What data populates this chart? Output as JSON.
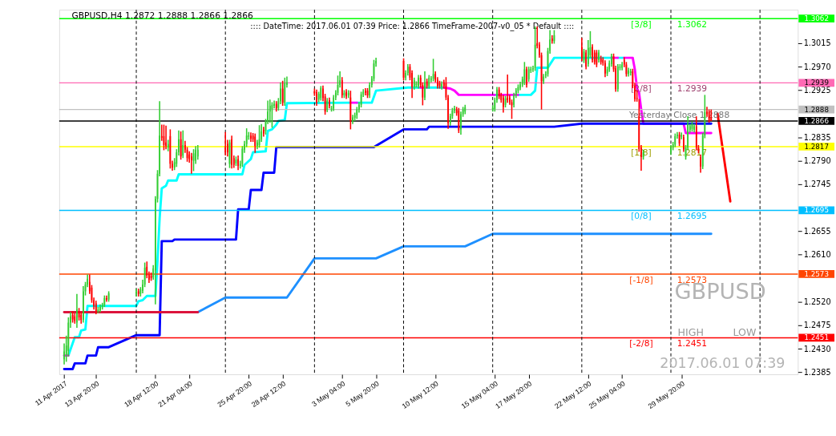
{
  "chart_data": {
    "type": "candlestick",
    "title": "GBPUSD,H4  1.2872 1.2888 1.2866 1.2866",
    "subtitle": ":::: DateTime: 2017.06.01 07:39    Price: 1.2866    TimeFrame-2007-v0_05    *  Default  ::::",
    "x": [
      "2017-04-11T08:00",
      "2017-04-11T12:00",
      "2017-04-11T16:00",
      "2017-04-11T20:00",
      "2017-04-12T00:00",
      "2017-04-12T04:00",
      "2017-04-12T08:00",
      "2017-04-12T12:00",
      "2017-04-12T16:00",
      "2017-04-12T20:00",
      "2017-04-13T00:00",
      "2017-04-13T04:00",
      "2017-04-13T08:00",
      "2017-04-13T12:00",
      "2017-04-13T16:00",
      "2017-04-13T20:00",
      "2017-04-14T00:00",
      "2017-04-14T04:00",
      "2017-04-14T08:00",
      "2017-04-14T12:00",
      "2017-04-14T16:00",
      "2017-04-14T20:00",
      "2017-04-17T00:00",
      "2017-04-17T04:00",
      "2017-04-17T08:00",
      "2017-04-17T12:00",
      "2017-04-17T16:00",
      "2017-04-17T20:00",
      "2017-04-18T00:00",
      "2017-04-18T04:00",
      "2017-04-18T08:00",
      "2017-04-18T12:00",
      "2017-04-18T16:00",
      "2017-04-18T20:00",
      "2017-04-19T00:00",
      "2017-04-19T04:00",
      "2017-04-19T08:00",
      "2017-04-19T12:00",
      "2017-04-19T16:00",
      "2017-04-19T20:00",
      "2017-04-20T00:00",
      "2017-04-20T04:00",
      "2017-04-20T08:00",
      "2017-04-20T12:00",
      "2017-04-20T16:00",
      "2017-04-20T20:00",
      "2017-04-21T00:00",
      "2017-04-21T04:00",
      "2017-04-21T08:00",
      "2017-04-21T12:00",
      "2017-04-21T16:00",
      "2017-04-21T20:00",
      "2017-04-24T00:00",
      "2017-04-24T04:00",
      "2017-04-24T08:00",
      "2017-04-24T12:00",
      "2017-04-24T16:00",
      "2017-04-24T20:00",
      "2017-04-25T00:00",
      "2017-04-25T04:00",
      "2017-04-25T08:00",
      "2017-04-25T12:00",
      "2017-04-25T16:00",
      "2017-04-25T20:00",
      "2017-04-26T00:00",
      "2017-04-26T04:00",
      "2017-04-26T08:00",
      "2017-04-26T12:00",
      "2017-04-26T16:00",
      "2017-04-26T20:00",
      "2017-04-27T00:00",
      "2017-04-27T04:00",
      "2017-04-27T08:00",
      "2017-04-27T12:00",
      "2017-04-27T16:00",
      "2017-04-27T20:00",
      "2017-04-28T00:00",
      "2017-04-28T04:00",
      "2017-04-28T08:00",
      "2017-04-28T12:00",
      "2017-04-28T16:00",
      "2017-04-28T20:00",
      "2017-05-01T00:00",
      "2017-05-01T04:00",
      "2017-05-01T08:00",
      "2017-05-01T12:00",
      "2017-05-01T16:00",
      "2017-05-01T20:00",
      "2017-05-02T00:00",
      "2017-05-02T04:00",
      "2017-05-02T08:00",
      "2017-05-02T12:00",
      "2017-05-02T16:00",
      "2017-05-02T20:00",
      "2017-05-03T00:00",
      "2017-05-03T04:00",
      "2017-05-03T08:00",
      "2017-05-03T12:00",
      "2017-05-03T16:00",
      "2017-05-03T20:00",
      "2017-05-04T00:00",
      "2017-05-04T04:00",
      "2017-05-04T08:00",
      "2017-05-04T12:00",
      "2017-05-04T16:00",
      "2017-05-04T20:00",
      "2017-05-05T00:00",
      "2017-05-05T04:00",
      "2017-05-05T08:00",
      "2017-05-05T12:00",
      "2017-05-05T16:00",
      "2017-05-05T20:00",
      "2017-05-08T00:00",
      "2017-05-08T04:00",
      "2017-05-08T08:00",
      "2017-05-08T12:00",
      "2017-05-08T16:00",
      "2017-05-08T20:00",
      "2017-05-09T00:00",
      "2017-05-09T04:00",
      "2017-05-09T08:00",
      "2017-05-09T12:00",
      "2017-05-09T16:00",
      "2017-05-09T20:00",
      "2017-05-10T00:00",
      "2017-05-10T04:00",
      "2017-05-10T08:00",
      "2017-05-10T12:00",
      "2017-05-10T16:00",
      "2017-05-10T20:00",
      "2017-05-11T00:00",
      "2017-05-11T04:00",
      "2017-05-11T08:00",
      "2017-05-11T12:00",
      "2017-05-11T16:00",
      "2017-05-11T20:00",
      "2017-05-12T00:00",
      "2017-05-12T04:00",
      "2017-05-12T08:00",
      "2017-05-12T12:00",
      "2017-05-12T16:00",
      "2017-05-12T20:00",
      "2017-05-15T00:00",
      "2017-05-15T04:00",
      "2017-05-15T08:00",
      "2017-05-15T12:00",
      "2017-05-15T16:00",
      "2017-05-15T20:00",
      "2017-05-16T00:00",
      "2017-05-16T04:00",
      "2017-05-16T08:00",
      "2017-05-16T12:00",
      "2017-05-16T16:00",
      "2017-05-16T20:00",
      "2017-05-17T00:00",
      "2017-05-17T04:00",
      "2017-05-17T08:00",
      "2017-05-17T12:00",
      "2017-05-17T16:00",
      "2017-05-17T20:00",
      "2017-05-18T00:00",
      "2017-05-18T04:00",
      "2017-05-18T08:00",
      "2017-05-18T12:00",
      "2017-05-18T16:00",
      "2017-05-18T20:00",
      "2017-05-19T00:00",
      "2017-05-19T04:00",
      "2017-05-19T08:00",
      "2017-05-19T12:00",
      "2017-05-19T16:00",
      "2017-05-19T20:00",
      "2017-05-22T00:00",
      "2017-05-22T04:00",
      "2017-05-22T08:00",
      "2017-05-22T12:00",
      "2017-05-22T16:00",
      "2017-05-22T20:00",
      "2017-05-23T00:00",
      "2017-05-23T04:00",
      "2017-05-23T08:00",
      "2017-05-23T12:00",
      "2017-05-23T16:00",
      "2017-05-23T20:00",
      "2017-05-24T00:00",
      "2017-05-24T04:00",
      "2017-05-24T08:00",
      "2017-05-24T12:00",
      "2017-05-24T16:00",
      "2017-05-24T20:00",
      "2017-05-25T00:00",
      "2017-05-25T04:00",
      "2017-05-25T08:00",
      "2017-05-25T12:00",
      "2017-05-25T16:00",
      "2017-05-25T20:00",
      "2017-05-26T00:00",
      "2017-05-26T04:00",
      "2017-05-26T08:00",
      "2017-05-26T12:00",
      "2017-05-26T16:00",
      "2017-05-26T20:00",
      "2017-05-29T00:00",
      "2017-05-29T04:00",
      "2017-05-29T08:00",
      "2017-05-29T12:00",
      "2017-05-29T16:00",
      "2017-05-29T20:00",
      "2017-05-30T00:00",
      "2017-05-30T04:00",
      "2017-05-30T08:00",
      "2017-05-30T12:00",
      "2017-05-30T16:00",
      "2017-05-30T20:00",
      "2017-05-31T00:00",
      "2017-05-31T04:00",
      "2017-05-31T08:00",
      "2017-05-31T12:00",
      "2017-05-31T16:00",
      "2017-05-31T20:00",
      "2017-06-01T00:00",
      "2017-06-01T04:00"
    ],
    "ohlc": [
      [
        1.241,
        1.244,
        1.24,
        1.2425
      ],
      [
        1.2418,
        1.2455,
        1.2405,
        1.2436
      ],
      [
        1.2426,
        1.249,
        1.2415,
        1.248
      ],
      [
        1.248,
        1.25,
        1.247,
        1.2492
      ],
      [
        1.2495,
        1.2502,
        1.248,
        1.2486
      ],
      [
        1.2492,
        1.2498,
        1.2478,
        1.2483
      ],
      [
        1.248,
        1.2535,
        1.247,
        1.2505
      ],
      [
        1.25,
        1.2508,
        1.2484,
        1.249
      ],
      [
        1.2495,
        1.25,
        1.2478,
        1.2485
      ],
      [
        1.2485,
        1.255,
        1.248,
        1.254
      ],
      [
        1.254,
        1.2558,
        1.2532,
        1.2553
      ],
      [
        1.2553,
        1.2572,
        1.2548,
        1.2564
      ],
      [
        1.2558,
        1.2572,
        1.2535,
        1.254
      ],
      [
        1.2547,
        1.2552,
        1.2518,
        1.2523
      ],
      [
        1.2523,
        1.2528,
        1.2505,
        1.2512
      ],
      [
        1.2517,
        1.2522,
        1.2496,
        1.2502
      ],
      [
        1.2502,
        1.251,
        1.2498,
        1.2505
      ],
      [
        1.2504,
        1.2515,
        1.25,
        1.251
      ],
      [
        1.251,
        1.2518,
        1.2505,
        1.2514
      ],
      [
        1.2514,
        1.2532,
        1.251,
        1.2527
      ],
      [
        1.2527,
        1.2532,
        1.252,
        1.2524
      ],
      [
        1.2524,
        1.254,
        1.252,
        1.2536
      ],
      [
        1.2536,
        1.2545,
        1.253,
        1.254
      ],
      [
        1.254,
        1.2545,
        1.253,
        1.2535
      ],
      [
        1.2535,
        1.2548,
        1.253,
        1.2544
      ],
      [
        1.2541,
        1.2562,
        1.2536,
        1.2553
      ],
      [
        1.2553,
        1.2595,
        1.2548,
        1.2585
      ],
      [
        1.2587,
        1.2597,
        1.2565,
        1.257
      ],
      [
        1.2572,
        1.2578,
        1.2556,
        1.2562
      ],
      [
        1.257,
        1.2576,
        1.256,
        1.2565
      ],
      [
        1.2567,
        1.259,
        1.2562,
        1.2584
      ],
      [
        1.258,
        1.2722,
        1.2515,
        1.2717
      ],
      [
        1.2717,
        1.2772,
        1.271,
        1.2765
      ],
      [
        1.2765,
        1.2904,
        1.276,
        1.2838
      ],
      [
        1.2837,
        1.2859,
        1.2828,
        1.2834
      ],
      [
        1.2837,
        1.2859,
        1.281,
        1.282
      ],
      [
        1.2825,
        1.2857,
        1.2812,
        1.2818
      ],
      [
        1.2815,
        1.283,
        1.2808,
        1.2822
      ],
      [
        1.2837,
        1.285,
        1.2775,
        1.2784
      ],
      [
        1.2784,
        1.279,
        1.2771,
        1.2777
      ],
      [
        1.2777,
        1.2795,
        1.2772,
        1.2787
      ],
      [
        1.2784,
        1.2812,
        1.2778,
        1.2806
      ],
      [
        1.2806,
        1.2848,
        1.28,
        1.2831
      ],
      [
        1.2831,
        1.2846,
        1.2792,
        1.2798
      ],
      [
        1.28,
        1.2848,
        1.2795,
        1.282
      ],
      [
        1.282,
        1.2828,
        1.2805,
        1.2811
      ],
      [
        1.2811,
        1.2816,
        1.2788,
        1.2795
      ],
      [
        1.2802,
        1.2808,
        1.2786,
        1.2793
      ],
      [
        1.2798,
        1.2805,
        1.2765,
        1.2791
      ],
      [
        1.279,
        1.2812,
        1.277,
        1.2804
      ],
      [
        1.279,
        1.2818,
        1.2784,
        1.2811
      ],
      [
        1.2798,
        1.282,
        1.2792,
        1.2811
      ],
      [
        1.2815,
        1.2845,
        1.28,
        1.2806
      ],
      [
        1.2822,
        1.283,
        1.2798,
        1.2806
      ],
      [
        1.2784,
        1.283,
        1.2776,
        1.2825
      ],
      [
        1.2831,
        1.2838,
        1.2775,
        1.2782
      ],
      [
        1.2795,
        1.28,
        1.2776,
        1.2782
      ],
      [
        1.2785,
        1.2798,
        1.278,
        1.2792
      ],
      [
        1.2793,
        1.28,
        1.2772,
        1.278
      ],
      [
        1.278,
        1.279,
        1.2775,
        1.2784
      ],
      [
        1.2784,
        1.2818,
        1.2778,
        1.2813
      ],
      [
        1.2811,
        1.2828,
        1.2805,
        1.2822
      ],
      [
        1.2822,
        1.2852,
        1.2816,
        1.2838
      ],
      [
        1.2836,
        1.2845,
        1.283,
        1.2838
      ],
      [
        1.2838,
        1.2844,
        1.2826,
        1.2832
      ],
      [
        1.2838,
        1.2843,
        1.2826,
        1.2831
      ],
      [
        1.2836,
        1.2842,
        1.2805,
        1.2818
      ],
      [
        1.2818,
        1.283,
        1.2812,
        1.2825
      ],
      [
        1.282,
        1.2858,
        1.2815,
        1.2831
      ],
      [
        1.2831,
        1.286,
        1.2826,
        1.2846
      ],
      [
        1.2849,
        1.2855,
        1.2836,
        1.2842
      ],
      [
        1.2847,
        1.287,
        1.284,
        1.2865
      ],
      [
        1.2865,
        1.2905,
        1.286,
        1.2884
      ],
      [
        1.2884,
        1.2907,
        1.2863,
        1.2895
      ],
      [
        1.2889,
        1.2902,
        1.2853,
        1.2897
      ],
      [
        1.2895,
        1.2905,
        1.289,
        1.2899
      ],
      [
        1.2899,
        1.2904,
        1.2884,
        1.289
      ],
      [
        1.2891,
        1.291,
        1.2886,
        1.2904
      ],
      [
        1.2904,
        1.294,
        1.2898,
        1.2928
      ],
      [
        1.2928,
        1.2943,
        1.2895,
        1.2901
      ],
      [
        1.2901,
        1.2949,
        1.2895,
        1.2938
      ],
      [
        1.2935,
        1.2951,
        1.293,
        1.294
      ],
      [
        1.2923,
        1.2928,
        1.2914,
        1.2919
      ],
      [
        1.2921,
        1.2926,
        1.2895,
        1.2901
      ],
      [
        1.2907,
        1.2922,
        1.2902,
        1.2918
      ],
      [
        1.291,
        1.2933,
        1.2905,
        1.2929
      ],
      [
        1.2928,
        1.2934,
        1.2904,
        1.291
      ],
      [
        1.2913,
        1.2918,
        1.2878,
        1.2884
      ],
      [
        1.2888,
        1.291,
        1.2883,
        1.2905
      ],
      [
        1.2906,
        1.2911,
        1.289,
        1.2895
      ],
      [
        1.2889,
        1.2895,
        1.2884,
        1.289
      ],
      [
        1.289,
        1.2916,
        1.2885,
        1.2911
      ],
      [
        1.2911,
        1.2925,
        1.2906,
        1.292
      ],
      [
        1.292,
        1.2953,
        1.2915,
        1.2935
      ],
      [
        1.2935,
        1.2961,
        1.293,
        1.2944
      ],
      [
        1.2944,
        1.295,
        1.291,
        1.2915
      ],
      [
        1.2915,
        1.2925,
        1.291,
        1.292
      ],
      [
        1.2922,
        1.2927,
        1.2908,
        1.2913
      ],
      [
        1.2915,
        1.2925,
        1.291,
        1.292
      ],
      [
        1.2911,
        1.2924,
        1.285,
        1.2866
      ],
      [
        1.2866,
        1.2878,
        1.286,
        1.2873
      ],
      [
        1.2872,
        1.2882,
        1.2866,
        1.2877
      ],
      [
        1.2877,
        1.2893,
        1.287,
        1.2888
      ],
      [
        1.2888,
        1.2902,
        1.2882,
        1.2897
      ],
      [
        1.2897,
        1.2922,
        1.2892,
        1.2917
      ],
      [
        1.2917,
        1.2927,
        1.2912,
        1.2922
      ],
      [
        1.2924,
        1.2929,
        1.2915,
        1.292
      ],
      [
        1.2924,
        1.2929,
        1.291,
        1.2915
      ],
      [
        1.2915,
        1.294,
        1.291,
        1.2935
      ],
      [
        1.2935,
        1.2952,
        1.293,
        1.2947
      ],
      [
        1.2947,
        1.2983,
        1.2942,
        1.2976
      ],
      [
        1.2976,
        1.2987,
        1.297,
        1.2981
      ],
      [
        1.2981,
        1.2986,
        1.2944,
        1.2949
      ],
      [
        1.2949,
        1.2963,
        1.2944,
        1.2958
      ],
      [
        1.2958,
        1.2975,
        1.2953,
        1.297
      ],
      [
        1.297,
        1.2975,
        1.2944,
        1.2949
      ],
      [
        1.2958,
        1.2963,
        1.291,
        1.2931
      ],
      [
        1.2931,
        1.2949,
        1.2926,
        1.2944
      ],
      [
        1.2935,
        1.2942,
        1.293,
        1.2937
      ],
      [
        1.2933,
        1.2954,
        1.2928,
        1.2949
      ],
      [
        1.2949,
        1.2954,
        1.293,
        1.2935
      ],
      [
        1.2935,
        1.294,
        1.2896,
        1.2911
      ],
      [
        1.2911,
        1.2961,
        1.2906,
        1.294
      ],
      [
        1.2942,
        1.2947,
        1.2928,
        1.2933
      ],
      [
        1.2933,
        1.2954,
        1.2928,
        1.2949
      ],
      [
        1.2945,
        1.2952,
        1.294,
        1.2947
      ],
      [
        1.2947,
        1.2985,
        1.2942,
        1.2956
      ],
      [
        1.2956,
        1.2961,
        1.294,
        1.2945
      ],
      [
        1.2945,
        1.295,
        1.2928,
        1.2933
      ],
      [
        1.2938,
        1.2943,
        1.2928,
        1.2933
      ],
      [
        1.2931,
        1.2942,
        1.2926,
        1.2937
      ],
      [
        1.294,
        1.2945,
        1.2928,
        1.2933
      ],
      [
        1.2938,
        1.295,
        1.2906,
        1.2911
      ],
      [
        1.2911,
        1.2916,
        1.2851,
        1.2862
      ],
      [
        1.2862,
        1.288,
        1.2857,
        1.2875
      ],
      [
        1.2875,
        1.2891,
        1.287,
        1.2886
      ],
      [
        1.2886,
        1.2895,
        1.2881,
        1.289
      ],
      [
        1.2888,
        1.2893,
        1.2876,
        1.2881
      ],
      [
        1.2886,
        1.2891,
        1.2843,
        1.2848
      ],
      [
        1.285,
        1.2884,
        1.284,
        1.2879
      ],
      [
        1.2879,
        1.2893,
        1.2874,
        1.2888
      ],
      [
        1.2884,
        1.2897,
        1.2879,
        1.2892
      ],
      [
        1.2889,
        1.2896,
        1.2884,
        1.2891
      ],
      [
        1.2889,
        1.2911,
        1.2884,
        1.2906
      ],
      [
        1.2906,
        1.2931,
        1.2901,
        1.2926
      ],
      [
        1.2926,
        1.2931,
        1.2908,
        1.2913
      ],
      [
        1.2915,
        1.292,
        1.2901,
        1.2906
      ],
      [
        1.2911,
        1.2916,
        1.2882,
        1.2893
      ],
      [
        1.2897,
        1.2914,
        1.2892,
        1.2909
      ],
      [
        1.2911,
        1.2955,
        1.2901,
        1.2906
      ],
      [
        1.2911,
        1.2916,
        1.2897,
        1.2902
      ],
      [
        1.2902,
        1.2907,
        1.287,
        1.2896
      ],
      [
        1.2897,
        1.292,
        1.2892,
        1.2915
      ],
      [
        1.2915,
        1.2929,
        1.291,
        1.2924
      ],
      [
        1.2924,
        1.2936,
        1.2919,
        1.2931
      ],
      [
        1.293,
        1.2941,
        1.2925,
        1.2936
      ],
      [
        1.2936,
        1.2951,
        1.2931,
        1.2946
      ],
      [
        1.294,
        1.2979,
        1.2935,
        1.2965
      ],
      [
        1.2965,
        1.297,
        1.293,
        1.2935
      ],
      [
        1.2946,
        1.297,
        1.2941,
        1.2965
      ],
      [
        1.2963,
        1.297,
        1.2958,
        1.2965
      ],
      [
        1.2965,
        1.2972,
        1.296,
        1.2967
      ],
      [
        1.2967,
        1.3047,
        1.2962,
        1.3012
      ],
      [
        1.3015,
        1.3047,
        1.3005,
        1.301
      ],
      [
        1.3012,
        1.3017,
        1.2987,
        1.2992
      ],
      [
        1.2992,
        1.2997,
        1.2888,
        1.2942
      ],
      [
        1.2942,
        1.2956,
        1.2937,
        1.2951
      ],
      [
        1.2953,
        1.2961,
        1.2948,
        1.2956
      ],
      [
        1.2956,
        1.3006,
        1.2951,
        1.3
      ],
      [
        1.3,
        1.304,
        1.2995,
        1.3022
      ],
      [
        1.3024,
        1.303,
        1.3014,
        1.3019
      ],
      [
        1.3019,
        1.304,
        1.3014,
        1.303
      ],
      [
        1.3008,
        1.3025,
        1.2981,
        1.2986
      ],
      [
        1.2982,
        1.3004,
        1.2977,
        1.2999
      ],
      [
        1.2997,
        1.3002,
        1.2965,
        1.297
      ],
      [
        1.2975,
        1.3021,
        1.297,
        1.3006
      ],
      [
        1.2992,
        1.3038,
        1.2987,
        1.3007
      ],
      [
        1.3008,
        1.3013,
        1.2978,
        1.2983
      ],
      [
        1.2997,
        1.3002,
        1.2974,
        1.2979
      ],
      [
        1.2997,
        1.3002,
        1.2969,
        1.2974
      ],
      [
        1.2983,
        1.3002,
        1.2978,
        1.2997
      ],
      [
        1.2986,
        1.2991,
        1.2974,
        1.2979
      ],
      [
        1.2983,
        1.2988,
        1.2972,
        1.2977
      ],
      [
        1.2977,
        1.2982,
        1.295,
        1.2957
      ],
      [
        1.2957,
        1.297,
        1.2952,
        1.2965
      ],
      [
        1.2965,
        1.2982,
        1.296,
        1.2977
      ],
      [
        1.2975,
        1.2995,
        1.297,
        1.299
      ],
      [
        1.299,
        1.2995,
        1.296,
        1.2965
      ],
      [
        1.2967,
        1.2972,
        1.2922,
        1.2927
      ],
      [
        1.2927,
        1.2975,
        1.2922,
        1.297
      ],
      [
        1.2968,
        1.2975,
        1.2963,
        1.297
      ],
      [
        1.2968,
        1.2979,
        1.2963,
        1.2974
      ],
      [
        1.2983,
        1.2988,
        1.2969,
        1.2974
      ],
      [
        1.2974,
        1.2979,
        1.2951,
        1.2956
      ],
      [
        1.2956,
        1.2968,
        1.2951,
        1.2963
      ],
      [
        1.2958,
        1.2966,
        1.2953,
        1.2961
      ],
      [
        1.2961,
        1.2966,
        1.2929,
        1.2934
      ],
      [
        1.2934,
        1.2939,
        1.2903,
        1.2908
      ],
      [
        1.291,
        1.2925,
        1.2903,
        1.2908
      ],
      [
        1.2875,
        1.2908,
        1.2807,
        1.2812
      ],
      [
        1.2815,
        1.282,
        1.2771,
        1.2797
      ],
      [
        1.2797,
        1.2811,
        1.2792,
        1.2806
      ],
      [
        1.2806,
        1.282,
        1.2801,
        1.2815
      ],
      [
        1.2815,
        1.2826,
        1.281,
        1.2821
      ],
      [
        1.2821,
        1.2842,
        1.2816,
        1.2837
      ],
      [
        1.2837,
        1.2845,
        1.2832,
        1.284
      ],
      [
        1.284,
        1.2845,
        1.2818,
        1.2823
      ],
      [
        1.2836,
        1.2844,
        1.2831,
        1.2839
      ],
      [
        1.2835,
        1.284,
        1.2807,
        1.2812
      ],
      [
        1.2797,
        1.282,
        1.2792,
        1.2815
      ],
      [
        1.2815,
        1.2875,
        1.281,
        1.286
      ],
      [
        1.2849,
        1.2861,
        1.2844,
        1.2856
      ],
      [
        1.2851,
        1.2865,
        1.2846,
        1.286
      ],
      [
        1.2849,
        1.2861,
        1.2844,
        1.2856
      ],
      [
        1.2856,
        1.2875,
        1.281,
        1.2815
      ],
      [
        1.2815,
        1.282,
        1.2804,
        1.2809
      ],
      [
        1.2797,
        1.2802,
        1.2767,
        1.2779
      ],
      [
        1.2779,
        1.2843,
        1.2774,
        1.2838
      ],
      [
        1.2838,
        1.2916,
        1.2833,
        1.2883
      ],
      [
        1.2884,
        1.2893,
        1.2874,
        1.2879
      ],
      [
        1.2883,
        1.2888,
        1.2863,
        1.2868
      ],
      [
        1.2872,
        1.2888,
        1.2866,
        1.2866
      ]
    ],
    "colors": [
      "#32cd32",
      "#32cd32",
      "#32cd32",
      "#32cd32",
      "#ff0000",
      "#ff0000",
      "#32cd32",
      "#ff0000",
      "#ff0000",
      "#32cd32",
      "#32cd32",
      "#32cd32",
      "#ff0000",
      "#ff0000",
      "#ff0000",
      "#ff0000",
      "#32cd32",
      "#32cd32",
      "#32cd32",
      "#32cd32",
      "#ff0000",
      "#32cd32",
      "#32cd32",
      "#ff0000",
      "#32cd32",
      "#32cd32",
      "#32cd32",
      "#ff0000",
      "#ff0000",
      "#ff0000",
      "#32cd32",
      "#32cd32",
      "#32cd32",
      "#32cd32",
      "#ff0000",
      "#ff0000",
      "#ff0000",
      "#32cd32",
      "#ff0000",
      "#ff0000",
      "#32cd32",
      "#32cd32",
      "#32cd32",
      "#ff0000",
      "#32cd32",
      "#ff0000",
      "#ff0000",
      "#ff0000",
      "#ff0000",
      "#32cd32",
      "#32cd32",
      "#32cd32",
      "#ff0000",
      "#ff0000",
      "#32cd32",
      "#ff0000",
      "#ff0000",
      "#32cd32",
      "#ff0000",
      "#32cd32",
      "#32cd32",
      "#32cd32",
      "#32cd32",
      "#32cd32",
      "#ff0000",
      "#ff0000",
      "#ff0000",
      "#32cd32",
      "#32cd32",
      "#32cd32",
      "#ff0000",
      "#32cd32",
      "#32cd32",
      "#32cd32",
      "#32cd32",
      "#32cd32",
      "#ff0000",
      "#32cd32",
      "#32cd32",
      "#ff0000",
      "#32cd32",
      "#32cd32",
      "#ff0000",
      "#ff0000",
      "#32cd32",
      "#32cd32",
      "#ff0000",
      "#ff0000",
      "#32cd32",
      "#ff0000",
      "#32cd32",
      "#32cd32",
      "#32cd32",
      "#32cd32",
      "#32cd32",
      "#ff0000",
      "#32cd32",
      "#ff0000",
      "#32cd32",
      "#ff0000",
      "#32cd32",
      "#32cd32",
      "#32cd32",
      "#32cd32",
      "#32cd32",
      "#32cd32",
      "#ff0000",
      "#ff0000",
      "#32cd32",
      "#32cd32",
      "#32cd32",
      "#32cd32",
      "#ff0000",
      "#32cd32",
      "#32cd32",
      "#ff0000",
      "#ff0000",
      "#32cd32",
      "#32cd32",
      "#32cd32",
      "#ff0000",
      "#ff0000",
      "#32cd32",
      "#ff0000",
      "#32cd32",
      "#32cd32",
      "#32cd32",
      "#ff0000",
      "#ff0000",
      "#ff0000",
      "#32cd32",
      "#ff0000",
      "#ff0000",
      "#ff0000",
      "#32cd32",
      "#32cd32",
      "#32cd32",
      "#ff0000",
      "#ff0000",
      "#32cd32",
      "#32cd32",
      "#32cd32",
      "#32cd32",
      "#32cd32",
      "#32cd32",
      "#ff0000",
      "#ff0000",
      "#ff0000",
      "#32cd32",
      "#ff0000",
      "#ff0000",
      "#ff0000",
      "#32cd32",
      "#32cd32",
      "#32cd32",
      "#32cd32",
      "#32cd32",
      "#32cd32",
      "#ff0000",
      "#32cd32",
      "#32cd32",
      "#32cd32",
      "#32cd32",
      "#ff0000",
      "#ff0000",
      "#ff0000",
      "#32cd32",
      "#32cd32",
      "#32cd32",
      "#32cd32",
      "#ff0000",
      "#32cd32",
      "#ff0000",
      "#32cd32",
      "#ff0000",
      "#32cd32",
      "#32cd32",
      "#ff0000",
      "#ff0000",
      "#ff0000",
      "#32cd32",
      "#ff0000",
      "#ff0000",
      "#ff0000",
      "#32cd32",
      "#32cd32",
      "#32cd32",
      "#ff0000",
      "#ff0000",
      "#32cd32",
      "#32cd32",
      "#32cd32",
      "#ff0000",
      "#ff0000",
      "#32cd32",
      "#32cd32",
      "#ff0000",
      "#ff0000",
      "#ff0000",
      "#ff0000",
      "#ff0000",
      "#32cd32",
      "#32cd32",
      "#32cd32",
      "#32cd32",
      "#32cd32",
      "#ff0000",
      "#32cd32",
      "#ff0000",
      "#32cd32",
      "#32cd32",
      "#32cd32",
      "#32cd32",
      "#32cd32",
      "#ff0000",
      "#ff0000",
      "#ff0000",
      "#32cd32",
      "#32cd32",
      "#ff0000",
      "#ff0000",
      "#ff0000"
    ],
    "series": [
      {
        "type": "line",
        "color": "#00ffff",
        "x": [
          "2017-04-11T16:00",
          "2017-04-12T04:00",
          "2017-04-12T12:00",
          "2017-04-12T16:00",
          "2017-04-13T00:00",
          "2017-04-13T04:00",
          "2017-04-17T00:00",
          "2017-04-17T04:00",
          "2017-04-17T12:00",
          "2017-04-17T20:00",
          "2017-04-18T12:00",
          "2017-04-18T16:00",
          "2017-04-18T20:00",
          "2017-04-19T00:00",
          "2017-04-19T08:00",
          "2017-04-19T12:00",
          "2017-04-20T04:00",
          "2017-04-20T08:00",
          "2017-04-25T08:00",
          "2017-04-25T12:00",
          "2017-04-26T00:00",
          "2017-04-26T04:00",
          "2017-04-27T04:00",
          "2017-04-27T08:00",
          "2017-04-27T16:00",
          "2017-04-28T00:00",
          "2017-04-28T04:00",
          "2017-04-28T16:00",
          "2017-04-28T20:00",
          "2017-05-03T20:00",
          "2017-05-04T00:00",
          "2017-05-04T08:00",
          "2017-05-05T12:00",
          "2017-05-05T20:00",
          "2017-05-08T08:00",
          "2017-05-09T08:00",
          "2017-05-09T12:00",
          "2017-05-09T16:00",
          "2017-05-11T04:00",
          "2017-05-12T04:00",
          "2017-05-15T04:00",
          "2017-05-15T12:00",
          "2017-05-16T08:00",
          "2017-05-17T00:00",
          "2017-05-18T00:00",
          "2017-05-18T08:00",
          "2017-05-18T12:00",
          "2017-05-19T08:00",
          "2017-05-19T20:00",
          "2017-05-24T08:00",
          "2017-05-24T12:00",
          "2017-05-24T20:00",
          "2017-05-25T08:00"
        ],
        "values": [
          1.2417,
          1.2452,
          1.2452,
          1.2465,
          1.2467,
          1.2512,
          1.2512,
          1.2521,
          1.2523,
          1.2531,
          1.2531,
          1.2598,
          1.268,
          1.2737,
          1.2742,
          1.2752,
          1.2752,
          1.2764,
          1.2764,
          1.2782,
          1.2793,
          1.2806,
          1.2808,
          1.2847,
          1.285,
          1.2859,
          1.2866,
          1.2868,
          1.29,
          1.2901,
          null,
          1.2901,
          1.2901,
          1.2924,
          1.293,
          1.293,
          null,
          1.293,
          1.293,
          null,
          1.2916,
          1.2916,
          null,
          1.2916,
          1.2916,
          1.2924,
          1.2968,
          1.2968,
          1.2987,
          1.2987,
          null,
          1.2987,
          1.2987
        ]
      },
      {
        "type": "line",
        "color": "#ff00ff",
        "x": [
          "2017-04-11T08:00",
          "2017-04-11T16:00",
          "2017-04-11T20:00",
          "2017-05-03T20:00",
          "2017-05-04T08:00",
          "2017-05-04T12:00",
          "2017-05-09T08:00",
          "2017-05-09T16:00",
          "2017-05-10T04:00",
          "2017-05-11T04:00",
          "2017-05-11T16:00",
          "2017-05-12T00:00",
          "2017-05-12T08:00",
          "2017-05-15T04:00",
          "2017-05-15T08:00",
          "2017-05-15T12:00",
          "2017-05-17T00:00",
          "2017-05-17T12:00",
          "2017-05-24T08:00",
          "2017-05-24T20:00",
          "2017-05-25T00:00",
          "2017-05-25T08:00",
          "2017-05-26T00:00",
          "2017-05-26T04:00",
          "2017-05-26T08:00",
          "2017-05-26T12:00",
          "2017-05-26T16:00",
          "2017-05-26T20:00",
          "2017-05-30T00:00",
          "2017-05-30T04:00",
          "2017-06-01T04:00"
        ],
        "values": [
          1.2417,
          1.2417,
          null,
          1.2901,
          1.2901,
          null,
          1.293,
          1.293,
          null,
          1.293,
          1.2928,
          1.2924,
          1.2916,
          1.2916,
          null,
          1.2916,
          1.2916,
          null,
          1.2987,
          1.2987,
          null,
          1.2987,
          1.2987,
          1.2965,
          1.2929,
          1.292,
          1.2888,
          1.2861,
          1.2861,
          1.2843,
          1.2843
        ]
      },
      {
        "type": "line",
        "color": "#0000ff",
        "x": [
          "2017-04-11T08:00",
          "2017-04-12T00:00",
          "2017-04-12T04:00",
          "2017-04-13T00:00",
          "2017-04-13T04:00",
          "2017-04-13T20:00",
          "2017-04-14T00:00",
          "2017-04-14T20:00",
          "2017-04-17T00:00",
          "2017-04-18T20:00",
          "2017-04-19T00:00",
          "2017-04-19T20:00",
          "2017-04-20T00:00",
          "2017-04-24T20:00",
          "2017-04-25T00:00",
          "2017-04-25T20:00",
          "2017-04-26T00:00",
          "2017-04-26T20:00",
          "2017-04-27T00:00",
          "2017-04-27T20:00",
          "2017-04-28T00:00",
          "2017-05-05T16:00",
          "2017-05-08T00:00",
          "2017-05-09T20:00",
          "2017-05-10T00:00",
          "2017-05-19T20:00",
          "2017-05-22T00:00",
          "2017-06-01T04:00"
        ],
        "values": [
          1.2391,
          1.2391,
          1.2402,
          1.2402,
          1.2417,
          1.2417,
          1.2433,
          1.2433,
          1.2456,
          1.2456,
          1.2636,
          1.2636,
          1.2639,
          1.2639,
          1.2697,
          1.2697,
          1.2734,
          1.2734,
          1.2767,
          1.2767,
          1.2816,
          1.2816,
          1.285,
          1.285,
          1.2855,
          1.2855,
          1.2861,
          1.2861
        ]
      },
      {
        "type": "line",
        "color": "#1e90ff",
        "x": [
          "2017-04-21T20:00",
          "2017-04-24T00:00",
          "2017-04-28T20:00",
          "2017-05-01T00:00",
          "2017-05-05T20:00",
          "2017-05-08T00:00",
          "2017-05-12T20:00",
          "2017-05-15T00:00",
          "2017-06-01T04:00"
        ],
        "values": [
          1.25,
          1.2528,
          1.2528,
          1.2603,
          1.2603,
          1.2626,
          1.2626,
          1.265,
          1.265
        ]
      },
      {
        "type": "line",
        "color": "#dc143c",
        "x": [
          "2017-04-11T08:00",
          "2017-04-21T20:00"
        ],
        "values": [
          1.25,
          1.25
        ]
      },
      {
        "type": "line",
        "color": "#ff0000",
        "x": [
          "2017-06-01T16:00",
          "2017-06-02T16:00"
        ],
        "values": [
          1.288,
          1.2712
        ]
      }
    ],
    "xlim": [
      "2017-04-11T06:00",
      "2017-06-07T16:00"
    ],
    "ylim": [
      1.2381,
      1.3079
    ],
    "xticks": [
      {
        "value": "2017-04-11T08:00",
        "label": "11 Apr 2017"
      },
      {
        "value": "2017-04-13T20:00",
        "label": "13 Apr 20:00"
      },
      {
        "value": "2017-04-18T12:00",
        "label": "18 Apr 12:00"
      },
      {
        "value": "2017-04-21T04:00",
        "label": "21 Apr 04:00"
      },
      {
        "value": "2017-04-25T20:00",
        "label": "25 Apr 20:00"
      },
      {
        "value": "2017-04-28T12:00",
        "label": "28 Apr 12:00"
      },
      {
        "value": "2017-05-03T04:00",
        "label": "3 May 04:00"
      },
      {
        "value": "2017-05-05T20:00",
        "label": "5 May 20:00"
      },
      {
        "value": "2017-05-10T12:00",
        "label": "10 May 12:00"
      },
      {
        "value": "2017-05-15T04:00",
        "label": "15 May 04:00"
      },
      {
        "value": "2017-05-17T20:00",
        "label": "17 May 20:00"
      },
      {
        "value": "2017-05-22T12:00",
        "label": "22 May 12:00"
      },
      {
        "value": "2017-05-25T04:00",
        "label": "25 May 04:00"
      },
      {
        "value": "2017-05-29T20:00",
        "label": "29 May 20:00"
      }
    ],
    "yticks": [
      {
        "value": 1.3015,
        "label": "1.3015"
      },
      {
        "value": 1.297,
        "label": "1.2970"
      },
      {
        "value": 1.2925,
        "label": "1.2925"
      },
      {
        "value": 1.2835,
        "label": "1.2835"
      },
      {
        "value": 1.279,
        "label": "1.2790"
      },
      {
        "value": 1.2745,
        "label": "1.2745"
      },
      {
        "value": 1.2655,
        "label": "1.2655"
      },
      {
        "value": 1.261,
        "label": "1.2610"
      },
      {
        "value": 1.252,
        "label": "1.2520"
      },
      {
        "value": 1.2475,
        "label": "1.2475"
      },
      {
        "value": 1.243,
        "label": "1.2430"
      },
      {
        "value": 1.2385,
        "label": "1.2385"
      }
    ],
    "ref_lines": [
      {
        "axis": "y",
        "value": 1.3062,
        "label": "1.3062",
        "color": "#00ff00"
      },
      {
        "axis": "y",
        "value": 1.2939,
        "label": "1.2939",
        "color": "#ff69b4"
      },
      {
        "axis": "y",
        "value": 1.2888,
        "label": "1.2888",
        "color": "#c0c0c0"
      },
      {
        "axis": "y",
        "value": 1.2866,
        "label": "1.2866",
        "color": "#000000"
      },
      {
        "axis": "y",
        "value": 1.2817,
        "label": "1.2817",
        "color": "#ffff00"
      },
      {
        "axis": "y",
        "value": 1.2695,
        "label": "1.2695",
        "color": "#00bfff"
      },
      {
        "axis": "y",
        "value": 1.2573,
        "label": "1.2573",
        "color": "#ff4500"
      },
      {
        "axis": "y",
        "value": 1.2451,
        "label": "1.2451",
        "color": "#ff0000"
      },
      {
        "axis": "x",
        "value": "2017-04-17T00:00",
        "color": "#000000",
        "line_style": "dashed"
      },
      {
        "axis": "x",
        "value": "2017-04-24T00:00",
        "color": "#000000",
        "line_style": "dashed"
      },
      {
        "axis": "x",
        "value": "2017-05-01T00:00",
        "color": "#000000",
        "line_style": "dashed"
      },
      {
        "axis": "x",
        "value": "2017-05-08T00:00",
        "color": "#000000",
        "line_style": "dashed"
      },
      {
        "axis": "x",
        "value": "2017-05-15T00:00",
        "color": "#000000",
        "line_style": "dashed"
      },
      {
        "axis": "x",
        "value": "2017-05-22T00:00",
        "color": "#000000",
        "line_style": "dashed"
      },
      {
        "axis": "x",
        "value": "2017-05-29T00:00",
        "color": "#000000",
        "line_style": "dashed"
      },
      {
        "axis": "x",
        "value": "2017-06-05T00:00",
        "color": "#000000",
        "line_style": "dashed"
      }
    ],
    "annotations": [
      {
        "text": "[3/8]",
        "x": "2017-05-26T16:00",
        "y": 1.3062
      },
      {
        "text": "1.3062",
        "x": "2017-05-30T16:00",
        "y": 1.3062
      },
      {
        "text": "[2/8]",
        "x": "2017-05-26T16:00",
        "y": 1.2939
      },
      {
        "text": "1.2939",
        "x": "2017-05-30T16:00",
        "y": 1.2939
      },
      {
        "text": "Yesterday Close 1.2888",
        "x": "2017-05-29T16:00",
        "y": 1.2888
      },
      {
        "text": "[1/8]",
        "x": "2017-05-26T16:00",
        "y": 1.2817
      },
      {
        "text": "1.2817",
        "x": "2017-05-30T16:00",
        "y": 1.2817
      },
      {
        "text": "[0/8]",
        "x": "2017-05-26T16:00",
        "y": 1.2695
      },
      {
        "text": "1.2695",
        "x": "2017-05-30T16:00",
        "y": 1.2695
      },
      {
        "text": "[-1/8]",
        "x": "2017-05-26T16:00",
        "y": 1.2573
      },
      {
        "text": "1.2573",
        "x": "2017-05-30T16:00",
        "y": 1.2573
      },
      {
        "text": "[-2/8]",
        "x": "2017-05-26T16:00",
        "y": 1.2451
      },
      {
        "text": "1.2451",
        "x": "2017-05-30T16:00",
        "y": 1.2451
      },
      "GBPUSD",
      "HIGH",
      "LOW",
      "2017.06.01 07:39"
    ],
    "grid": false
  }
}
